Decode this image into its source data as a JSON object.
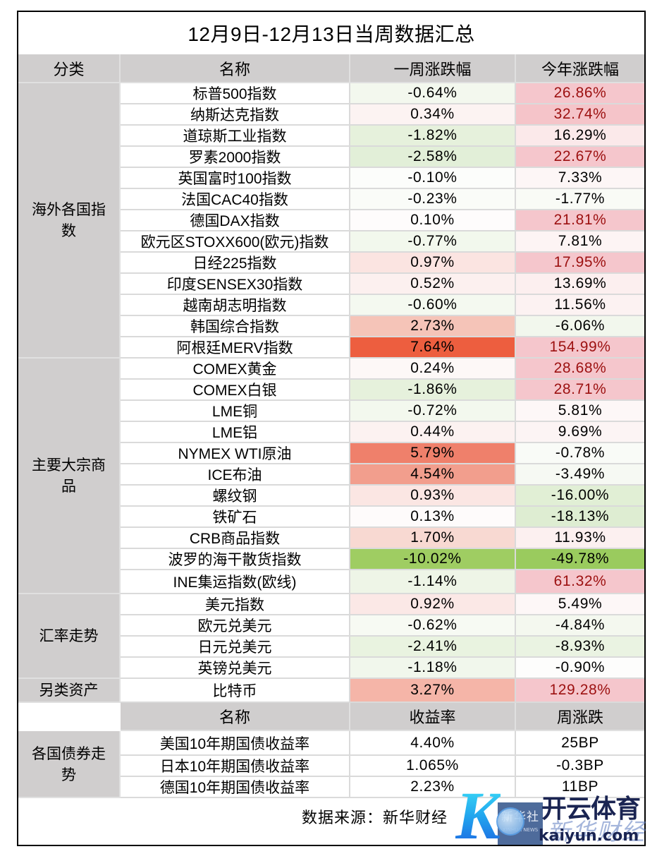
{
  "chart_data": {
    "type": "table",
    "title": "12月9日-12月13日当周数据汇总",
    "columns": [
      "分类",
      "名称",
      "一周涨跌幅",
      "今年涨跌幅"
    ],
    "groups": [
      {
        "category": "海外各国指数",
        "rows": [
          {
            "name": "标普500指数",
            "week": "-0.64%",
            "week_bg": "#f3f8ee",
            "ytd": "26.86%",
            "ytd_bg": "#f5c6cc",
            "ytd_text": "#9c1010"
          },
          {
            "name": "纳斯达克指数",
            "week": "0.34%",
            "week_bg": "#fcf3f2",
            "ytd": "32.74%",
            "ytd_bg": "#f5c4c9",
            "ytd_text": "#9c1010"
          },
          {
            "name": "道琼斯工业指数",
            "week": "-1.82%",
            "week_bg": "#e6f1dc",
            "ytd": "16.29%",
            "ytd_bg": "#fbe9ea",
            "ytd_text": "#000000"
          },
          {
            "name": "罗素2000指数",
            "week": "-2.58%",
            "week_bg": "#e2efd8",
            "ytd": "22.67%",
            "ytd_bg": "#f5c6cc",
            "ytd_text": "#9c1010"
          },
          {
            "name": "英国富时100指数",
            "week": "-0.10%",
            "week_bg": "#fcfdfb",
            "ytd": "7.33%",
            "ytd_bg": "#fdf6f6",
            "ytd_text": "#000000"
          },
          {
            "name": "法国CAC40指数",
            "week": "-0.23%",
            "week_bg": "#fafcf8",
            "ytd": "-1.77%",
            "ytd_bg": "#f9fbf6",
            "ytd_text": "#000000"
          },
          {
            "name": "德国DAX指数",
            "week": "0.10%",
            "week_bg": "#fefcfc",
            "ytd": "21.81%",
            "ytd_bg": "#f5c6cc",
            "ytd_text": "#9c1010"
          },
          {
            "name": "欧元区STOXX600(欧元)指数",
            "week": "-0.77%",
            "week_bg": "#f2f8ed",
            "ytd": "7.81%",
            "ytd_bg": "#fdf4f4",
            "ytd_text": "#000000"
          },
          {
            "name": "日经225指数",
            "week": "0.97%",
            "week_bg": "#fbe4e1",
            "ytd": "17.95%",
            "ytd_bg": "#f5c6cc",
            "ytd_text": "#9c1010"
          },
          {
            "name": "印度SENSEX30指数",
            "week": "0.52%",
            "week_bg": "#fcf0ef",
            "ytd": "13.69%",
            "ytd_bg": "#fcefef",
            "ytd_text": "#000000"
          },
          {
            "name": "越南胡志明指数",
            "week": "-0.60%",
            "week_bg": "#f4f9f0",
            "ytd": "11.56%",
            "ytd_bg": "#fcf2f2",
            "ytd_text": "#000000"
          },
          {
            "name": "韩国综合指数",
            "week": "2.73%",
            "week_bg": "#f5c4b8",
            "ytd": "-6.06%",
            "ytd_bg": "#f2f7ed",
            "ytd_text": "#000000"
          },
          {
            "name": "阿根廷MERV指数",
            "week": "7.64%",
            "week_bg": "#ed5e3f",
            "ytd": "154.99%",
            "ytd_bg": "#f5c6cc",
            "ytd_text": "#9c1010"
          }
        ]
      },
      {
        "category": "主要大宗商品",
        "rows": [
          {
            "name": "COMEX黄金",
            "week": "0.24%",
            "week_bg": "#fdf8f7",
            "ytd": "28.68%",
            "ytd_bg": "#f5c6cc",
            "ytd_text": "#9c1010"
          },
          {
            "name": "COMEX白银",
            "week": "-1.86%",
            "week_bg": "#e6f1dc",
            "ytd": "28.71%",
            "ytd_bg": "#f5c6cc",
            "ytd_text": "#9c1010"
          },
          {
            "name": "LME铜",
            "week": "-0.72%",
            "week_bg": "#f3f8ee",
            "ytd": "5.81%",
            "ytd_bg": "#fdf7f7",
            "ytd_text": "#000000"
          },
          {
            "name": "LME铝",
            "week": "0.44%",
            "week_bg": "#fcf2f1",
            "ytd": "9.69%",
            "ytd_bg": "#fcf4f4",
            "ytd_text": "#000000"
          },
          {
            "name": "NYMEX WTI原油",
            "week": "5.79%",
            "week_bg": "#ef806b",
            "ytd": "-0.78%",
            "ytd_bg": "#f9fbf7",
            "ytd_text": "#000000"
          },
          {
            "name": "ICE布油",
            "week": "4.54%",
            "week_bg": "#f29e8d",
            "ytd": "-3.49%",
            "ytd_bg": "#f6f9f3",
            "ytd_text": "#000000"
          },
          {
            "name": "螺纹钢",
            "week": "0.93%",
            "week_bg": "#fbe6e3",
            "ytd": "-16.00%",
            "ytd_bg": "#e1efd5",
            "ytd_text": "#000000"
          },
          {
            "name": "铁矿石",
            "week": "0.13%",
            "week_bg": "#fefbfb",
            "ytd": "-18.13%",
            "ytd_bg": "#deedd2",
            "ytd_text": "#000000"
          },
          {
            "name": "CRB商品指数",
            "week": "1.70%",
            "week_bg": "#f8d9d2",
            "ytd": "11.93%",
            "ytd_bg": "#fcf0f0",
            "ytd_text": "#000000"
          },
          {
            "name": "波罗的海干散货指数",
            "week": "-10.02%",
            "week_bg": "#9fcd62",
            "ytd": "-49.78%",
            "ytd_bg": "#9acb5e",
            "ytd_text": "#000000"
          },
          {
            "name": "INE集运指数(欧线)",
            "week": "-1.14%",
            "week_bg": "#eef5e7",
            "ytd": "61.32%",
            "ytd_bg": "#f5c6cc",
            "ytd_text": "#9c1010"
          }
        ]
      },
      {
        "category": "汇率走势",
        "rows": [
          {
            "name": "美元指数",
            "week": "0.92%",
            "week_bg": "#fbe8e6",
            "ytd": "5.49%",
            "ytd_bg": "#fdf7f7",
            "ytd_text": "#000000"
          },
          {
            "name": "欧元兑美元",
            "week": "-0.62%",
            "week_bg": "#f7faf3",
            "ytd": "-4.84%",
            "ytd_bg": "#f4f8ef",
            "ytd_text": "#000000"
          },
          {
            "name": "日元兑美元",
            "week": "-2.41%",
            "week_bg": "#e9f3e0",
            "ytd": "-8.93%",
            "ytd_bg": "#eaf3e2",
            "ytd_text": "#000000"
          },
          {
            "name": "英镑兑美元",
            "week": "-1.18%",
            "week_bg": "#f1f7ec",
            "ytd": "-0.90%",
            "ytd_bg": "#fdfdfc",
            "ytd_text": "#000000"
          }
        ]
      },
      {
        "category": "另类资产",
        "rows": [
          {
            "name": "比特币",
            "week": "3.27%",
            "week_bg": "#f5b5a8",
            "ytd": "129.28%",
            "ytd_bg": "#f5c6cc",
            "ytd_text": "#9c1010"
          }
        ]
      }
    ],
    "bond_section": {
      "category": "各国债券走势",
      "columns": [
        "名称",
        "收益率",
        "周涨跌"
      ],
      "rows": [
        {
          "name": "美国10年期国债收益率",
          "yield": "4.40%",
          "weekly": "25BP"
        },
        {
          "name": "日本10年期国债收益率",
          "yield": "1.065%",
          "weekly": "-0.3BP"
        },
        {
          "name": "德国10年期国债收益率",
          "yield": "2.23%",
          "weekly": "11BP"
        }
      ]
    },
    "source": "数据来源：新华财经"
  },
  "colors": {
    "header_bg": "#d0cece",
    "grid_line": "#dadada",
    "frame": "#000000",
    "highlight_fill": "#f5c6cc",
    "highlight_text": "#9c1010",
    "scale_max_red": "#ed5e3f",
    "scale_max_green": "#9acb5e"
  },
  "watermark": {
    "k_letter": "K",
    "logo_cn": "新华社",
    "logo_en": "XINHUA NEWS",
    "faint_text": "新华财经",
    "brand_cn": "开云体育",
    "brand_url": "kaiyun.com"
  }
}
